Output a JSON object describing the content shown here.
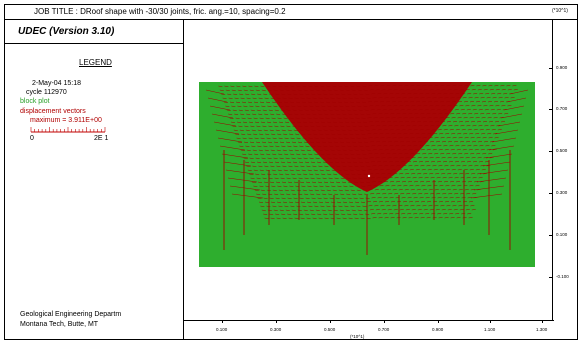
{
  "header": {
    "job_title": "JOB TITLE :  DRoof shape with -30/30 joints, fric. ang.=10, spacing=0.2",
    "exp_label_right": "(*10^1)"
  },
  "left_panel": {
    "app_title": "UDEC (Version 3.10)",
    "legend_title": "LEGEND",
    "date": "2-May-04  15:18",
    "cycle": "cycle   112970",
    "block_plot": "block plot",
    "disp_vectors": "displacement vectors",
    "maximum": "maximum =    3.911E+00",
    "scale_min": "0",
    "scale_max": "2E  1",
    "footer_line1": "Geological Engineering Departm",
    "footer_line2": "Montana Tech, Butte, MT"
  },
  "axes": {
    "x_ticks": [
      "0.100",
      "0.300",
      "0.500",
      "0.700",
      "0.900",
      "1.100",
      "1.300"
    ],
    "x_exp": "(*10^1)",
    "y_ticks": [
      "0.900",
      "0.700",
      "0.500",
      "0.300",
      "0.100",
      "-0.100"
    ]
  },
  "colors": {
    "block": "#2eae2e",
    "vectors": "#a00000",
    "scale": "#c00000"
  }
}
